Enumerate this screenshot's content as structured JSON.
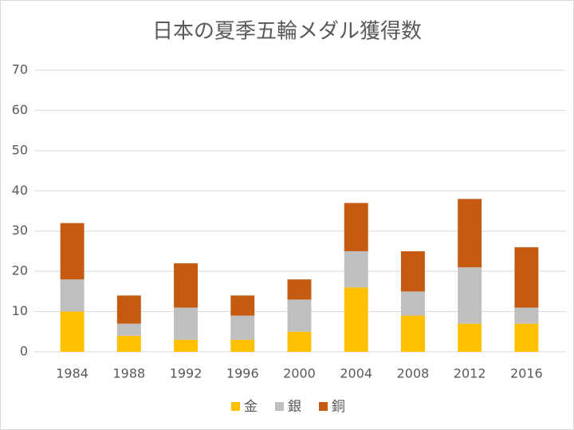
{
  "chart_data": {
    "type": "stacked_bar",
    "title": "日本の夏季五輪メダル獲得数",
    "categories": [
      "1984",
      "1988",
      "1992",
      "1996",
      "2000",
      "2004",
      "2008",
      "2012",
      "2016"
    ],
    "series": [
      {
        "name": "金",
        "color": "#ffc000",
        "values": [
          10,
          4,
          3,
          3,
          5,
          16,
          9,
          7,
          7
        ]
      },
      {
        "name": "銀",
        "color": "#bfbfbf",
        "values": [
          8,
          3,
          8,
          6,
          8,
          9,
          6,
          14,
          4
        ]
      },
      {
        "name": "銅",
        "color": "#c55a11",
        "values": [
          14,
          7,
          11,
          5,
          5,
          12,
          10,
          17,
          15
        ]
      }
    ],
    "ylim": [
      0,
      70
    ],
    "yticks": [
      0,
      10,
      20,
      30,
      40,
      50,
      60,
      70
    ],
    "grid": true,
    "legend": "bottom"
  }
}
